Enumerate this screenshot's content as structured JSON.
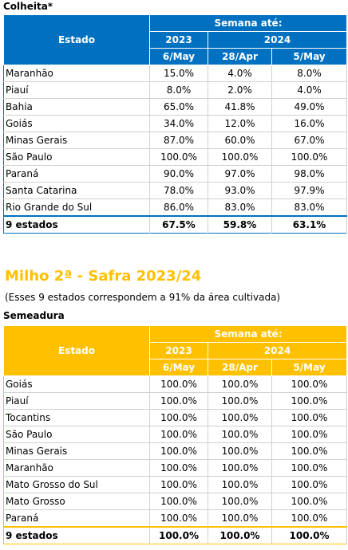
{
  "colheita": {
    "caption": "Colheita*",
    "header": {
      "estado": "Estado",
      "semana": "Semana até:",
      "year_a": "2023",
      "year_b": "2024",
      "date_1": "6/May",
      "date_2": "28/Apr",
      "date_3": "5/May"
    },
    "rows": [
      {
        "estado": "Maranhão",
        "v1": "15.0%",
        "v2": "4.0%",
        "v3": "8.0%"
      },
      {
        "estado": "Piauí",
        "v1": "8.0%",
        "v2": "2.0%",
        "v3": "4.0%"
      },
      {
        "estado": "Bahia",
        "v1": "65.0%",
        "v2": "41.8%",
        "v3": "49.0%"
      },
      {
        "estado": "Goiás",
        "v1": "34.0%",
        "v2": "12.0%",
        "v3": "16.0%"
      },
      {
        "estado": "Minas Gerais",
        "v1": "87.0%",
        "v2": "60.0%",
        "v3": "67.0%"
      },
      {
        "estado": "São Paulo",
        "v1": "100.0%",
        "v2": "100.0%",
        "v3": "100.0%"
      },
      {
        "estado": "Paraná",
        "v1": "90.0%",
        "v2": "97.0%",
        "v3": "98.0%"
      },
      {
        "estado": "Santa Catarina",
        "v1": "78.0%",
        "v2": "93.0%",
        "v3": "97.9%"
      },
      {
        "estado": "Rio Grande do Sul",
        "v1": "86.0%",
        "v2": "83.0%",
        "v3": "83.0%"
      }
    ],
    "total": {
      "estado": "9 estados",
      "v1": "67.5%",
      "v2": "59.8%",
      "v3": "63.1%"
    }
  },
  "milho": {
    "title": "Milho 2ª - Safra 2023/24",
    "note": "(Esses 9 estados correspondem a 91% da área cultivada)",
    "caption": "Semeadura",
    "header": {
      "estado": "Estado",
      "semana": "Semana até:",
      "year_a": "2023",
      "year_b": "2024",
      "date_1": "6/May",
      "date_2": "28/Apr",
      "date_3": "5/May"
    },
    "rows": [
      {
        "estado": "Goiás",
        "v1": "100.0%",
        "v2": "100.0%",
        "v3": "100.0%"
      },
      {
        "estado": "Piauí",
        "v1": "100.0%",
        "v2": "100.0%",
        "v3": "100.0%"
      },
      {
        "estado": "Tocantins",
        "v1": "100.0%",
        "v2": "100.0%",
        "v3": "100.0%"
      },
      {
        "estado": "São Paulo",
        "v1": "100.0%",
        "v2": "100.0%",
        "v3": "100.0%"
      },
      {
        "estado": "Minas Gerais",
        "v1": "100.0%",
        "v2": "100.0%",
        "v3": "100.0%"
      },
      {
        "estado": "Maranhão",
        "v1": "100.0%",
        "v2": "100.0%",
        "v3": "100.0%"
      },
      {
        "estado": "Mato Grosso do Sul",
        "v1": "100.0%",
        "v2": "100.0%",
        "v3": "100.0%"
      },
      {
        "estado": "Mato Grosso",
        "v1": "100.0%",
        "v2": "100.0%",
        "v3": "100.0%"
      },
      {
        "estado": "Paraná",
        "v1": "100.0%",
        "v2": "100.0%",
        "v3": "100.0%"
      }
    ],
    "total": {
      "estado": "9 estados",
      "v1": "100.0%",
      "v2": "100.0%",
      "v3": "100.0%"
    }
  },
  "colors": {
    "blue": "#0070C0",
    "yellow": "#FFC000"
  }
}
